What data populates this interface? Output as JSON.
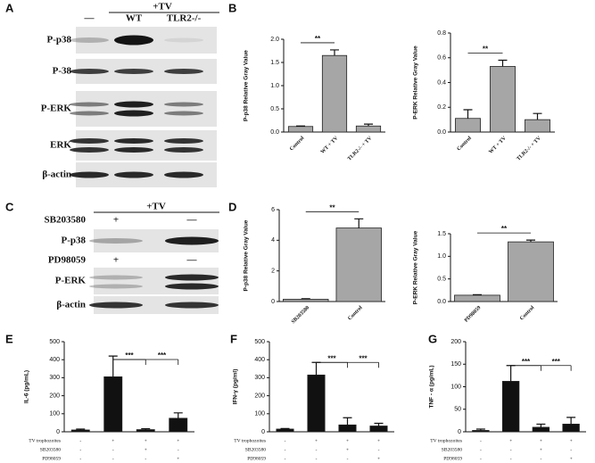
{
  "panels": [
    "A",
    "B",
    "C",
    "D",
    "E",
    "F",
    "G"
  ],
  "blots": {
    "A": {
      "header": "+TV",
      "lanes": [
        "—",
        "WT",
        "TLR2-/-"
      ],
      "rows": [
        "P-p38",
        "P-38",
        "P-ERK",
        "ERK",
        "β-actin"
      ]
    },
    "C": {
      "header": "+TV",
      "treatments": [
        {
          "name": "SB203580",
          "signs": [
            "+",
            "—"
          ]
        },
        {
          "name": "PD98059",
          "signs": [
            "+",
            "—"
          ]
        }
      ],
      "rows": [
        "P-p38",
        "P-ERK",
        "β-actin"
      ]
    }
  },
  "chart_data": [
    {
      "type": "bar",
      "ylabel": "P-p38 Relative Gray Value",
      "categories": [
        "Control",
        "WT + TV",
        "TLR2-/- + TV"
      ],
      "values": [
        0.12,
        1.65,
        0.13
      ],
      "errors": [
        0.01,
        0.12,
        0.04
      ],
      "color": "#a6a6a6",
      "ylim": [
        0,
        2
      ],
      "yticks": [
        {
          "value": 0,
          "label": "0.0"
        },
        {
          "value": 0.5,
          "label": "0.5"
        },
        {
          "value": 1,
          "label": "1.0"
        },
        {
          "value": 1.5,
          "label": "1.5"
        },
        {
          "value": 2,
          "label": "2.0"
        }
      ],
      "annotations": [
        {
          "text": "**",
          "from": 0,
          "to": 1
        }
      ]
    },
    {
      "type": "bar",
      "ylabel": "P-ERK Relative Gray Value",
      "categories": [
        "Control",
        "WT + TV",
        "TLR2-/- + TV"
      ],
      "values": [
        0.11,
        0.53,
        0.1
      ],
      "errors": [
        0.07,
        0.05,
        0.05
      ],
      "color": "#a6a6a6",
      "ylim": [
        0,
        0.8
      ],
      "yticks": [
        {
          "value": 0,
          "label": "0.0"
        },
        {
          "value": 0.2,
          "label": "0.2"
        },
        {
          "value": 0.4,
          "label": "0.4"
        },
        {
          "value": 0.6,
          "label": "0.6"
        },
        {
          "value": 0.8,
          "label": "0.8"
        }
      ],
      "annotations": [
        {
          "text": "**",
          "from": 0,
          "to": 1
        }
      ]
    },
    {
      "type": "bar",
      "ylabel": "P-p38 Relative Gray Value",
      "categories": [
        "SB203580",
        "Control"
      ],
      "values": [
        0.15,
        4.8
      ],
      "errors": [
        0.03,
        0.6
      ],
      "color": "#a6a6a6",
      "ylim": [
        0,
        6
      ],
      "yticks": [
        0,
        2,
        4,
        6
      ],
      "annotations": [
        {
          "text": "**",
          "from": 0,
          "to": 1
        }
      ]
    },
    {
      "type": "bar",
      "ylabel": "P-ERK Relative Gray Value",
      "categories": [
        "PD98059",
        "Control"
      ],
      "values": [
        0.14,
        1.32
      ],
      "errors": [
        0.01,
        0.04
      ],
      "color": "#a6a6a6",
      "ylim": [
        0,
        1.5
      ],
      "yticks": [
        {
          "value": 0,
          "label": "0.0"
        },
        {
          "value": 0.5,
          "label": "0.5"
        },
        {
          "value": 1,
          "label": "1.0"
        },
        {
          "value": 1.5,
          "label": "1.5"
        }
      ],
      "annotations": [
        {
          "text": "**",
          "from": 0,
          "to": 1
        }
      ]
    },
    {
      "type": "bar",
      "ylabel": "IL-6 (pg/mL)",
      "categories": [
        null,
        null,
        null,
        null
      ],
      "values": [
        10,
        305,
        12,
        75
      ],
      "errors": [
        5,
        115,
        5,
        30
      ],
      "color": "#111111",
      "ylim": [
        0,
        500
      ],
      "yticks": [
        0,
        100,
        200,
        300,
        400,
        500
      ],
      "annotations": [
        {
          "text": "***",
          "from": 1,
          "to": 2
        },
        {
          "text": "***",
          "from": 1,
          "to": 3
        }
      ],
      "factors": [
        {
          "name": "TV trophozoites",
          "signs": [
            "-",
            "+",
            "+",
            "+"
          ]
        },
        {
          "name": "SB203580",
          "signs": [
            "-",
            "-",
            "+",
            "-"
          ]
        },
        {
          "name": "PD98059",
          "signs": [
            "-",
            "-",
            "-",
            "+"
          ]
        }
      ]
    },
    {
      "type": "bar",
      "ylabel": "IFN-γ (pg/ml)",
      "categories": [
        null,
        null,
        null,
        null
      ],
      "values": [
        15,
        315,
        38,
        32
      ],
      "errors": [
        3,
        70,
        40,
        15
      ],
      "color": "#111111",
      "ylim": [
        0,
        500
      ],
      "yticks": [
        0,
        100,
        200,
        300,
        400,
        500
      ],
      "annotations": [
        {
          "text": "***",
          "from": 1,
          "to": 2
        },
        {
          "text": "***",
          "from": 1,
          "to": 3
        }
      ],
      "factors": [
        {
          "name": "TV trophozoites",
          "signs": [
            "-",
            "+",
            "+",
            "+"
          ]
        },
        {
          "name": "SB203580",
          "signs": [
            "-",
            "-",
            "+",
            "-"
          ]
        },
        {
          "name": "PD98059",
          "signs": [
            "-",
            "-",
            "-",
            "+"
          ]
        }
      ]
    },
    {
      "type": "bar",
      "ylabel": "TNF - α (pg/mL)",
      "categories": [
        null,
        null,
        null,
        null
      ],
      "values": [
        3,
        112,
        10,
        17
      ],
      "errors": [
        3,
        35,
        7,
        15
      ],
      "color": "#111111",
      "ylim": [
        0,
        200
      ],
      "yticks": [
        0,
        50,
        100,
        150,
        200
      ],
      "annotations": [
        {
          "text": "***",
          "from": 1,
          "to": 2
        },
        {
          "text": "***",
          "from": 1,
          "to": 3
        }
      ],
      "factors": [
        {
          "name": "TV trophozoites",
          "signs": [
            "-",
            "+",
            "+",
            "+"
          ]
        },
        {
          "name": "SB203580",
          "signs": [
            "-",
            "-",
            "+",
            "-"
          ]
        },
        {
          "name": "PD98059",
          "signs": [
            "-",
            "-",
            "-",
            "+"
          ]
        }
      ]
    }
  ]
}
